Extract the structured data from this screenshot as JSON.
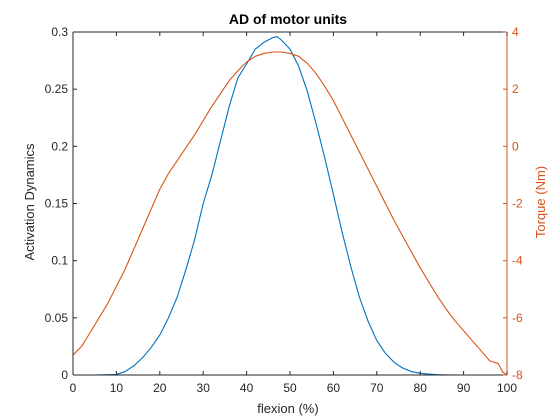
{
  "chart_data": {
    "type": "line",
    "title": "AD of motor units",
    "xlabel": "flexion (%)",
    "ylabel_left": "Activation Dynamics",
    "ylabel_right": "Torque (Nm)",
    "xlim": [
      0,
      100
    ],
    "ylim_left": [
      0,
      0.3
    ],
    "ylim_right": [
      -8,
      4
    ],
    "x_ticks": [
      0,
      10,
      20,
      30,
      40,
      50,
      60,
      70,
      80,
      90,
      100
    ],
    "y_left_ticks": [
      0,
      0.05,
      0.1,
      0.15,
      0.2,
      0.25,
      0.3
    ],
    "y_right_ticks": [
      -8,
      -6,
      -4,
      -2,
      0,
      2,
      4
    ],
    "grid": false,
    "colors": {
      "left_axis": "#262626",
      "right_axis": "#D95319",
      "ad_series": "#0072BD",
      "torque_series": "#D95319"
    },
    "series": [
      {
        "axis": "left",
        "color": "#0072BD",
        "x": [
          0,
          5,
          10,
          12,
          14,
          16,
          18,
          20,
          22,
          24,
          26,
          28,
          30,
          32,
          34,
          36,
          38,
          40,
          42,
          44,
          46,
          47,
          48,
          50,
          52,
          54,
          56,
          58,
          60,
          62,
          64,
          66,
          68,
          70,
          72,
          74,
          76,
          78,
          80,
          82,
          84,
          86,
          88,
          90,
          95,
          100
        ],
        "y": [
          0,
          0,
          0.0005,
          0.003,
          0.008,
          0.015,
          0.024,
          0.035,
          0.05,
          0.068,
          0.092,
          0.118,
          0.15,
          0.175,
          0.205,
          0.235,
          0.26,
          0.272,
          0.285,
          0.291,
          0.295,
          0.296,
          0.293,
          0.285,
          0.27,
          0.248,
          0.22,
          0.19,
          0.158,
          0.125,
          0.095,
          0.068,
          0.047,
          0.03,
          0.019,
          0.011,
          0.006,
          0.003,
          0.0015,
          0.0008,
          0.0003,
          0.0001,
          0,
          0,
          0,
          0
        ]
      },
      {
        "axis": "right",
        "color": "#D95319",
        "x": [
          0,
          2,
          4,
          6,
          8,
          10,
          12,
          14,
          16,
          18,
          20,
          22,
          24,
          26,
          28,
          30,
          32,
          34,
          36,
          38,
          40,
          42,
          44,
          46,
          48,
          50,
          52,
          54,
          56,
          58,
          60,
          62,
          64,
          66,
          68,
          70,
          72,
          74,
          76,
          78,
          80,
          82,
          84,
          86,
          88,
          90,
          92,
          94,
          96,
          98,
          99,
          100
        ],
        "y": [
          -7.3,
          -7.0,
          -6.5,
          -6.0,
          -5.5,
          -4.9,
          -4.3,
          -3.6,
          -2.9,
          -2.2,
          -1.5,
          -0.95,
          -0.5,
          -0.05,
          0.4,
          0.9,
          1.4,
          1.85,
          2.3,
          2.65,
          2.95,
          3.15,
          3.25,
          3.3,
          3.3,
          3.25,
          3.15,
          2.9,
          2.55,
          2.1,
          1.6,
          1.0,
          0.4,
          -0.2,
          -0.8,
          -1.4,
          -2.0,
          -2.6,
          -3.15,
          -3.7,
          -4.25,
          -4.75,
          -5.25,
          -5.7,
          -6.1,
          -6.45,
          -6.8,
          -7.15,
          -7.5,
          -7.6,
          -7.9,
          -8.0
        ]
      }
    ]
  }
}
